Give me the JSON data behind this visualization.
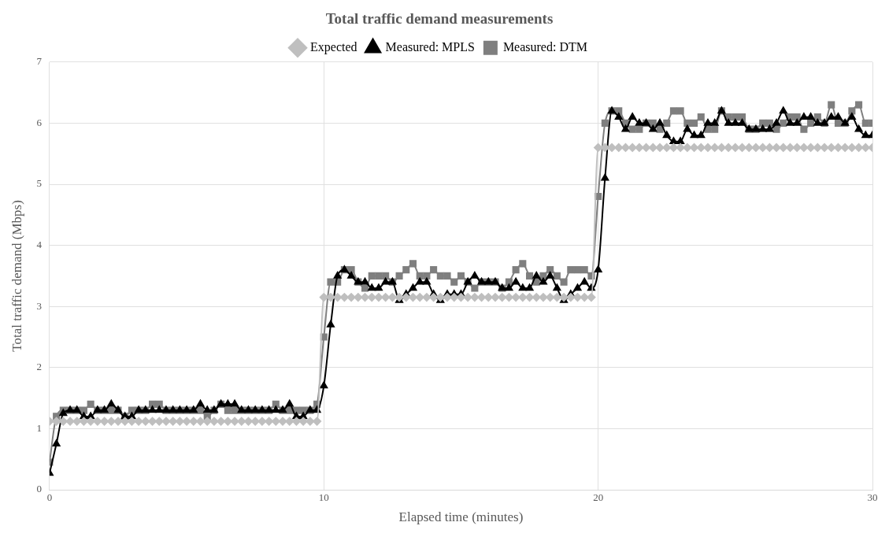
{
  "chart_data": {
    "type": "line",
    "title": "Total traffic demand measurements",
    "xlabel": "Elapsed time (minutes)",
    "ylabel": "Total traffic demand (Mbps)",
    "x": [
      0,
      0.25,
      0.5,
      0.75,
      1,
      1.25,
      1.5,
      1.75,
      2,
      2.25,
      2.5,
      2.75,
      3,
      3.25,
      3.5,
      3.75,
      4,
      4.25,
      4.5,
      4.75,
      5,
      5.25,
      5.5,
      5.75,
      6,
      6.25,
      6.5,
      6.75,
      7,
      7.25,
      7.5,
      7.75,
      8,
      8.25,
      8.5,
      8.75,
      9,
      9.25,
      9.5,
      9.75,
      10,
      10.25,
      10.5,
      10.75,
      11,
      11.25,
      11.5,
      11.75,
      12,
      12.25,
      12.5,
      12.75,
      13,
      13.25,
      13.5,
      13.75,
      14,
      14.25,
      14.5,
      14.75,
      15,
      15.25,
      15.5,
      15.75,
      16,
      16.25,
      16.5,
      16.75,
      17,
      17.25,
      17.5,
      17.75,
      18,
      18.25,
      18.5,
      18.75,
      19,
      19.25,
      19.5,
      19.75,
      20,
      20.25,
      20.5,
      20.75,
      21,
      21.25,
      21.5,
      21.75,
      22,
      22.25,
      22.5,
      22.75,
      23,
      23.25,
      23.5,
      23.75,
      24,
      24.25,
      24.5,
      24.75,
      25,
      25.25,
      25.5,
      25.75,
      26,
      26.25,
      26.5,
      26.75,
      27,
      27.25,
      27.5,
      27.75,
      28,
      28.25,
      28.5,
      28.75,
      29,
      29.25,
      29.5,
      29.75,
      30
    ],
    "series": [
      {
        "name": "Expected",
        "color": "#bfbfbf",
        "marker": "diamond",
        "values": [
          1.12,
          1.12,
          1.12,
          1.12,
          1.12,
          1.12,
          1.12,
          1.12,
          1.12,
          1.12,
          1.12,
          1.12,
          1.12,
          1.12,
          1.12,
          1.12,
          1.12,
          1.12,
          1.12,
          1.12,
          1.12,
          1.12,
          1.12,
          1.12,
          1.12,
          1.12,
          1.12,
          1.12,
          1.12,
          1.12,
          1.12,
          1.12,
          1.12,
          1.12,
          1.12,
          1.12,
          1.12,
          1.12,
          1.12,
          1.12,
          3.15,
          3.15,
          3.15,
          3.15,
          3.15,
          3.15,
          3.15,
          3.15,
          3.15,
          3.15,
          3.15,
          3.15,
          3.15,
          3.15,
          3.15,
          3.15,
          3.15,
          3.15,
          3.15,
          3.15,
          3.15,
          3.15,
          3.15,
          3.15,
          3.15,
          3.15,
          3.15,
          3.15,
          3.15,
          3.15,
          3.15,
          3.15,
          3.15,
          3.15,
          3.15,
          3.15,
          3.15,
          3.15,
          3.15,
          3.15,
          5.6,
          5.6,
          5.6,
          5.6,
          5.6,
          5.6,
          5.6,
          5.6,
          5.6,
          5.6,
          5.6,
          5.6,
          5.6,
          5.6,
          5.6,
          5.6,
          5.6,
          5.6,
          5.6,
          5.6,
          5.6,
          5.6,
          5.6,
          5.6,
          5.6,
          5.6,
          5.6,
          5.6,
          5.6,
          5.6,
          5.6,
          5.6,
          5.6,
          5.6,
          5.6,
          5.6,
          5.6,
          5.6,
          5.6,
          5.6,
          5.6
        ]
      },
      {
        "name": "Measured: MPLS",
        "color": "#000000",
        "marker": "triangle",
        "values": [
          0.27,
          0.75,
          1.25,
          1.3,
          1.3,
          1.2,
          1.2,
          1.3,
          1.3,
          1.4,
          1.3,
          1.2,
          1.2,
          1.3,
          1.3,
          1.3,
          1.3,
          1.3,
          1.3,
          1.3,
          1.3,
          1.3,
          1.4,
          1.3,
          1.3,
          1.4,
          1.4,
          1.4,
          1.3,
          1.3,
          1.3,
          1.3,
          1.3,
          1.3,
          1.3,
          1.4,
          1.2,
          1.2,
          1.3,
          1.3,
          1.7,
          2.7,
          3.5,
          3.6,
          3.5,
          3.4,
          3.4,
          3.3,
          3.3,
          3.4,
          3.4,
          3.1,
          3.2,
          3.3,
          3.4,
          3.4,
          3.2,
          3.1,
          3.2,
          3.2,
          3.2,
          3.4,
          3.5,
          3.4,
          3.4,
          3.4,
          3.3,
          3.3,
          3.4,
          3.3,
          3.3,
          3.5,
          3.4,
          3.5,
          3.3,
          3.1,
          3.2,
          3.3,
          3.4,
          3.3,
          3.6,
          5.1,
          6.2,
          6.1,
          5.9,
          6.1,
          6.0,
          6.0,
          5.9,
          6.0,
          5.8,
          5.7,
          5.7,
          5.9,
          5.8,
          5.8,
          6.0,
          6.0,
          6.2,
          6.0,
          6.0,
          6.0,
          5.9,
          5.9,
          5.9,
          5.9,
          6.0,
          6.2,
          6.0,
          6.0,
          6.1,
          6.1,
          6.0,
          6.0,
          6.1,
          6.1,
          6.0,
          6.1,
          5.9,
          5.8,
          5.8
        ]
      },
      {
        "name": "Measured: DTM",
        "color": "#7f7f7f",
        "marker": "square",
        "values": [
          0.45,
          1.2,
          1.3,
          1.3,
          1.3,
          1.3,
          1.4,
          1.3,
          1.3,
          1.3,
          1.3,
          1.2,
          1.3,
          1.3,
          1.3,
          1.4,
          1.4,
          1.3,
          1.3,
          1.3,
          1.3,
          1.3,
          1.3,
          1.2,
          1.3,
          1.4,
          1.3,
          1.3,
          1.3,
          1.3,
          1.3,
          1.3,
          1.3,
          1.4,
          1.3,
          1.3,
          1.3,
          1.3,
          1.3,
          1.4,
          2.5,
          3.4,
          3.4,
          3.6,
          3.6,
          3.4,
          3.3,
          3.5,
          3.5,
          3.5,
          3.4,
          3.5,
          3.6,
          3.7,
          3.5,
          3.5,
          3.6,
          3.5,
          3.5,
          3.4,
          3.5,
          3.4,
          3.3,
          3.4,
          3.4,
          3.4,
          3.3,
          3.4,
          3.6,
          3.7,
          3.5,
          3.4,
          3.5,
          3.6,
          3.5,
          3.4,
          3.6,
          3.6,
          3.6,
          3.5,
          4.8,
          6.0,
          6.2,
          6.2,
          6.0,
          5.9,
          5.9,
          6.0,
          6.0,
          5.9,
          6.0,
          6.2,
          6.2,
          6.0,
          6.0,
          6.1,
          5.9,
          5.9,
          6.2,
          6.1,
          6.1,
          6.1,
          5.9,
          5.9,
          6.0,
          6.0,
          5.9,
          6.0,
          6.1,
          6.1,
          5.9,
          6.0,
          6.1,
          6.0,
          6.3,
          6.0,
          6.0,
          6.2,
          6.3,
          6.0,
          6.0
        ]
      }
    ],
    "xlim": [
      0,
      30
    ],
    "xticks": [
      0,
      10,
      20,
      30
    ],
    "ylim": [
      0,
      7
    ],
    "yticks": [
      0,
      1,
      2,
      3,
      4,
      5,
      6,
      7
    ],
    "grid": true,
    "legend": "top",
    "line_style": "solid"
  }
}
